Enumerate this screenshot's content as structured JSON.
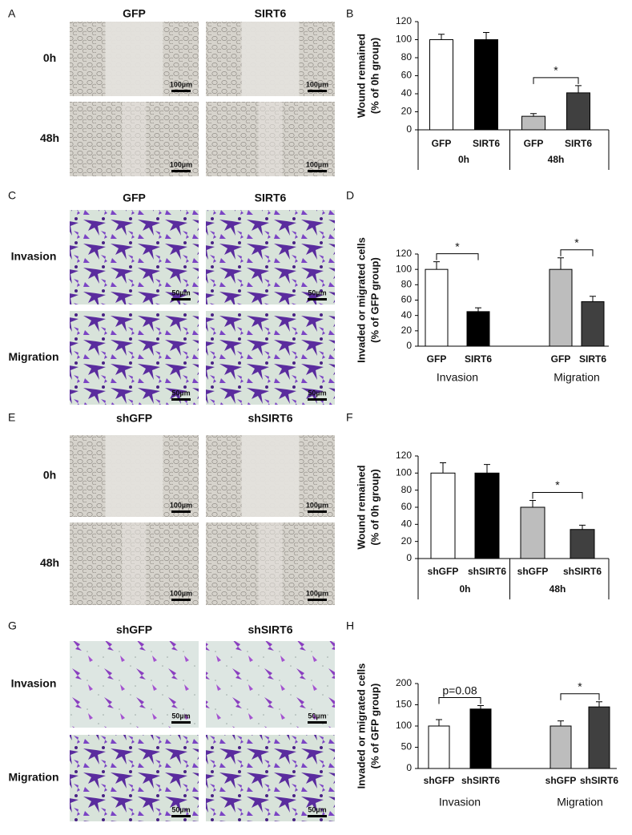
{
  "panel_labels": [
    "A",
    "B",
    "C",
    "D",
    "E",
    "F",
    "G",
    "H"
  ],
  "image_panels": [
    {
      "columns": [
        "GFP",
        "SIRT6"
      ],
      "rows": [
        "0h",
        "48h"
      ],
      "scale_bar": "100µm"
    },
    {
      "columns": [
        "GFP",
        "SIRT6"
      ],
      "rows": [
        "Invasion",
        "Migration"
      ],
      "scale_bar": "50µm"
    },
    {
      "columns": [
        "shGFP",
        "shSIRT6"
      ],
      "rows": [
        "0h",
        "48h"
      ],
      "scale_bar": "100µm"
    },
    {
      "columns": [
        "shGFP",
        "shSIRT6"
      ],
      "rows": [
        "Invasion",
        "Migration"
      ],
      "scale_bar": "50µm"
    }
  ],
  "chart_data": [
    {
      "type": "bar",
      "y_label": [
        "Wound remained",
        "(% of 0h group)"
      ],
      "categories": [
        "GFP",
        "SIRT6",
        "GFP",
        "SIRT6"
      ],
      "groups": [
        "0h",
        "48h"
      ],
      "group_dividers": true,
      "values": [
        100,
        100,
        15,
        41
      ],
      "errors": [
        6,
        8,
        3,
        8
      ],
      "colors": [
        "#ffffff",
        "#000000",
        "#bdbdbd",
        "#404040"
      ],
      "ylim": [
        0,
        120
      ],
      "yticks": [
        0,
        20,
        40,
        60,
        80,
        100,
        120
      ],
      "annotations": [
        {
          "text": "*",
          "from": 2,
          "to": 3
        }
      ]
    },
    {
      "type": "bar",
      "y_label": [
        "Invaded or migrated cells",
        "(% of GFP group)"
      ],
      "categories": [
        "GFP",
        "SIRT6",
        "GFP",
        "SIRT6"
      ],
      "groups": [
        "Invasion",
        "Migration"
      ],
      "group_dividers": false,
      "values": [
        100,
        45,
        100,
        58
      ],
      "errors": [
        10,
        5,
        15,
        7
      ],
      "colors": [
        "#ffffff",
        "#000000",
        "#bdbdbd",
        "#404040"
      ],
      "ylim": [
        0,
        120
      ],
      "yticks": [
        0,
        20,
        40,
        60,
        80,
        100,
        120
      ],
      "annotations": [
        {
          "text": "*",
          "from": 0,
          "to": 1
        },
        {
          "text": "*",
          "from": 2,
          "to": 3
        }
      ]
    },
    {
      "type": "bar",
      "y_label": [
        "Wound remained",
        "(% of 0h group)"
      ],
      "categories": [
        "shGFP",
        "shSIRT6",
        "shGFP",
        "shSIRT6"
      ],
      "groups": [
        "0h",
        "48h"
      ],
      "group_dividers": true,
      "values": [
        100,
        100,
        60,
        34
      ],
      "errors": [
        12,
        10,
        8,
        5
      ],
      "colors": [
        "#ffffff",
        "#000000",
        "#bdbdbd",
        "#404040"
      ],
      "ylim": [
        0,
        120
      ],
      "yticks": [
        0,
        20,
        40,
        60,
        80,
        100,
        120
      ],
      "annotations": [
        {
          "text": "*",
          "from": 2,
          "to": 3
        }
      ]
    },
    {
      "type": "bar",
      "y_label": [
        "Invaded or migrated cells",
        "(% of GFP group)"
      ],
      "categories": [
        "shGFP",
        "shSIRT6",
        "shGFP",
        "shSIRT6"
      ],
      "groups": [
        "Invasion",
        "Migration"
      ],
      "group_dividers": false,
      "values": [
        100,
        140,
        100,
        145
      ],
      "errors": [
        15,
        8,
        12,
        12
      ],
      "colors": [
        "#ffffff",
        "#000000",
        "#bdbdbd",
        "#404040"
      ],
      "ylim": [
        0,
        200
      ],
      "yticks": [
        0,
        50,
        100,
        150,
        200
      ],
      "annotations": [
        {
          "text": "p=0.08",
          "from": 0,
          "to": 1
        },
        {
          "text": "*",
          "from": 2,
          "to": 3
        }
      ]
    }
  ]
}
